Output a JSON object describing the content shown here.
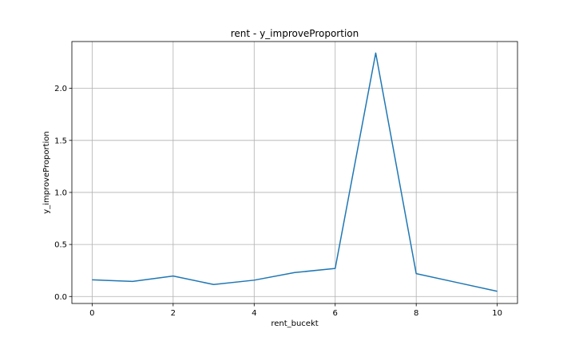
{
  "chart_data": {
    "type": "line",
    "title": "rent - y_improveProportion",
    "xlabel": "rent_bucekt",
    "ylabel": "y_improveProportion",
    "x": [
      0,
      1,
      2,
      3,
      4,
      5,
      6,
      7,
      8,
      9,
      10
    ],
    "series": [
      {
        "values": [
          0.16,
          0.145,
          0.197,
          0.115,
          0.157,
          0.23,
          0.27,
          2.34,
          0.22,
          0.135,
          0.05
        ],
        "color": "#1f77b4"
      }
    ],
    "xlim": [
      -0.5,
      10.5
    ],
    "ylim": [
      -0.067,
      2.45
    ],
    "xticks": [
      0,
      2,
      4,
      6,
      8,
      10
    ],
    "yticks": [
      0.0,
      0.5,
      1.0,
      1.5,
      2.0
    ],
    "xtick_labels": [
      "0",
      "2",
      "4",
      "6",
      "8",
      "10"
    ],
    "ytick_labels": [
      "0.0",
      "0.5",
      "1.0",
      "1.5",
      "2.0"
    ],
    "grid": true
  }
}
